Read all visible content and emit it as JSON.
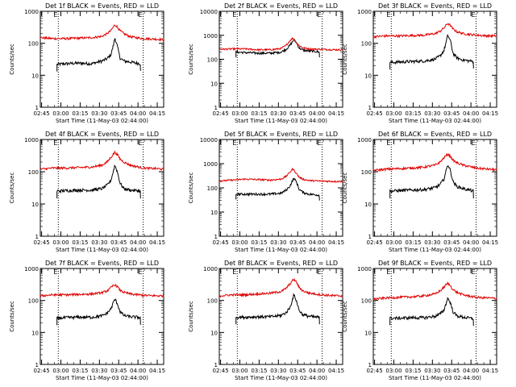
{
  "figure": {
    "panel_titles": [
      "Det 1f BLACK = Events, RED = LLD",
      "Det 2f BLACK = Events, RED = LLD",
      "Det 3f BLACK = Events, RED = LLD",
      "Det 4f BLACK = Events, RED = LLD",
      "Det 5f BLACK = Events, RED = LLD",
      "Det 6f BLACK = Events, RED = LLD",
      "Det 7f BLACK = Events, RED = LLD",
      "Det 8f BLACK = Events, RED = LLD",
      "Det 9f BLACK = Events, RED = LLD"
    ],
    "xlabel": "Start Time (11-May-03 02:44:00)",
    "ylabel": "Counts/sec",
    "x_tick_labels": [
      "02:45",
      "03:00",
      "03:15",
      "03:30",
      "03:45",
      "04:00",
      "04:15"
    ],
    "y_tick_labels": [
      "1",
      "10",
      "100",
      "1000"
    ],
    "marker_labels": [
      "E",
      "E"
    ],
    "colors": {
      "events": "#000000",
      "lld": "#e00000",
      "marker": "#000000"
    }
  },
  "chart_data": [
    {
      "type": "line",
      "title": "Det 1f BLACK = Events, RED = LLD",
      "xlabel": "Start Time (11-May-03 02:44:00)",
      "ylabel": "Counts/sec",
      "x_unit": "minutes after 02:44:00",
      "xlim": [
        0,
        96
      ],
      "ylim": [
        1,
        1000
      ],
      "y_scale": "log",
      "x_ticks": [
        "02:45",
        "03:00",
        "03:15",
        "03:30",
        "03:45",
        "04:00",
        "04:15"
      ],
      "vertical_markers_time": [
        "02:58",
        "04:04"
      ],
      "series": [
        {
          "name": "Events",
          "color": "#000000",
          "x": [
            13,
            20,
            30,
            40,
            48,
            52,
            55,
            57,
            58,
            60,
            62,
            65,
            70,
            75,
            78
          ],
          "y": [
            22,
            23,
            24,
            23,
            28,
            33,
            45,
            90,
            150,
            80,
            35,
            28,
            26,
            24,
            23
          ]
        },
        {
          "name": "LLD",
          "color": "#e00000",
          "x": [
            0,
            10,
            20,
            30,
            40,
            48,
            52,
            55,
            57,
            58,
            60,
            62,
            65,
            70,
            80,
            90,
            96
          ],
          "y": [
            150,
            140,
            140,
            145,
            150,
            165,
            200,
            250,
            330,
            380,
            320,
            250,
            200,
            160,
            140,
            135,
            130
          ]
        }
      ]
    },
    {
      "type": "line",
      "title": "Det 2f BLACK = Events, RED = LLD",
      "xlabel": "Start Time (11-May-03 02:44:00)",
      "ylabel": "Counts/sec",
      "x_unit": "minutes after 02:44:00",
      "xlim": [
        0,
        96
      ],
      "ylim": [
        1,
        10000
      ],
      "y_scale": "log",
      "x_ticks": [
        "02:45",
        "03:00",
        "03:15",
        "03:30",
        "03:45",
        "04:00",
        "04:15"
      ],
      "vertical_markers_time": [
        "02:58",
        "04:04"
      ],
      "series": [
        {
          "name": "Events",
          "color": "#000000",
          "x": [
            13,
            20,
            30,
            40,
            48,
            52,
            55,
            57,
            58,
            60,
            62,
            65,
            70,
            75,
            78
          ],
          "y": [
            200,
            190,
            180,
            180,
            200,
            260,
            380,
            550,
            650,
            500,
            300,
            240,
            220,
            210,
            200
          ]
        },
        {
          "name": "LLD",
          "color": "#e00000",
          "x": [
            0,
            10,
            20,
            30,
            40,
            48,
            52,
            55,
            57,
            58,
            60,
            62,
            65,
            70,
            80,
            90,
            96
          ],
          "y": [
            260,
            270,
            270,
            250,
            250,
            280,
            380,
            600,
            750,
            700,
            500,
            380,
            300,
            270,
            260,
            250,
            250
          ]
        }
      ]
    },
    {
      "type": "line",
      "title": "Det 3f BLACK = Events, RED = LLD",
      "xlabel": "Start Time (11-May-03 02:44:00)",
      "ylabel": "Counts/sec",
      "x_unit": "minutes after 02:44:00",
      "xlim": [
        0,
        96
      ],
      "ylim": [
        1,
        1000
      ],
      "y_scale": "log",
      "x_ticks": [
        "02:45",
        "03:00",
        "03:15",
        "03:30",
        "03:45",
        "04:00",
        "04:15"
      ],
      "vertical_markers_time": [
        "02:58",
        "04:04"
      ],
      "series": [
        {
          "name": "Events",
          "color": "#000000",
          "x": [
            13,
            20,
            30,
            40,
            48,
            52,
            55,
            57,
            58,
            60,
            62,
            65,
            70,
            75,
            78
          ],
          "y": [
            25,
            26,
            27,
            28,
            32,
            40,
            60,
            120,
            180,
            120,
            50,
            35,
            30,
            28,
            27
          ]
        },
        {
          "name": "LLD",
          "color": "#e00000",
          "x": [
            0,
            10,
            20,
            30,
            40,
            48,
            52,
            55,
            57,
            58,
            60,
            62,
            65,
            70,
            80,
            90,
            96
          ],
          "y": [
            160,
            170,
            170,
            175,
            180,
            200,
            240,
            300,
            380,
            420,
            360,
            280,
            230,
            200,
            180,
            170,
            170
          ]
        }
      ]
    },
    {
      "type": "line",
      "title": "Det 4f BLACK = Events, RED = LLD",
      "xlabel": "Start Time (11-May-03 02:44:00)",
      "ylabel": "Counts/sec",
      "x_unit": "minutes after 02:44:00",
      "xlim": [
        0,
        96
      ],
      "ylim": [
        1,
        1000
      ],
      "y_scale": "log",
      "x_ticks": [
        "02:45",
        "03:00",
        "03:15",
        "03:30",
        "03:45",
        "04:00",
        "04:15"
      ],
      "vertical_markers_time": [
        "02:58",
        "04:04"
      ],
      "series": [
        {
          "name": "Events",
          "color": "#000000",
          "x": [
            13,
            20,
            30,
            40,
            48,
            52,
            55,
            57,
            58,
            60,
            62,
            65,
            70,
            75,
            78
          ],
          "y": [
            25,
            26,
            27,
            27,
            30,
            38,
            55,
            110,
            160,
            100,
            45,
            30,
            27,
            26,
            25
          ]
        },
        {
          "name": "LLD",
          "color": "#e00000",
          "x": [
            0,
            10,
            20,
            30,
            40,
            48,
            52,
            55,
            57,
            58,
            60,
            62,
            65,
            70,
            80,
            90,
            96
          ],
          "y": [
            120,
            130,
            130,
            135,
            140,
            160,
            200,
            280,
            360,
            400,
            340,
            250,
            200,
            160,
            130,
            125,
            120
          ]
        }
      ]
    },
    {
      "type": "line",
      "title": "Det 5f BLACK = Events, RED = LLD",
      "xlabel": "Start Time (11-May-03 02:44:00)",
      "ylabel": "Counts/sec",
      "x_unit": "minutes after 02:44:00",
      "xlim": [
        0,
        96
      ],
      "ylim": [
        1,
        10000
      ],
      "y_scale": "log",
      "x_ticks": [
        "02:45",
        "03:00",
        "03:15",
        "03:30",
        "03:45",
        "04:00",
        "04:15"
      ],
      "vertical_markers_time": [
        "02:58",
        "04:04"
      ],
      "series": [
        {
          "name": "Events",
          "color": "#000000",
          "x": [
            13,
            20,
            30,
            40,
            48,
            52,
            55,
            57,
            58,
            60,
            62,
            65,
            70,
            75,
            78
          ],
          "y": [
            55,
            55,
            55,
            55,
            60,
            80,
            120,
            200,
            250,
            180,
            90,
            65,
            55,
            52,
            50
          ]
        },
        {
          "name": "LLD",
          "color": "#e00000",
          "x": [
            0,
            10,
            20,
            30,
            40,
            48,
            52,
            55,
            57,
            58,
            60,
            62,
            65,
            70,
            80,
            90,
            96
          ],
          "y": [
            190,
            210,
            230,
            220,
            210,
            230,
            300,
            450,
            600,
            550,
            400,
            280,
            230,
            200,
            190,
            185,
            185
          ]
        }
      ]
    },
    {
      "type": "line",
      "title": "Det 6f BLACK = Events, RED = LLD",
      "xlabel": "Start Time (11-May-03 02:44:00)",
      "ylabel": "Counts/sec",
      "x_unit": "minutes after 02:44:00",
      "xlim": [
        0,
        96
      ],
      "ylim": [
        1,
        1000
      ],
      "y_scale": "log",
      "x_ticks": [
        "02:45",
        "03:00",
        "03:15",
        "03:30",
        "03:45",
        "04:00",
        "04:15"
      ],
      "vertical_markers_time": [
        "02:58",
        "04:04"
      ],
      "series": [
        {
          "name": "Events",
          "color": "#000000",
          "x": [
            13,
            20,
            30,
            40,
            48,
            52,
            55,
            57,
            58,
            60,
            62,
            65,
            70,
            75,
            78
          ],
          "y": [
            25,
            26,
            27,
            28,
            32,
            40,
            60,
            120,
            170,
            110,
            50,
            35,
            30,
            27,
            25
          ]
        },
        {
          "name": "LLD",
          "color": "#e00000",
          "x": [
            0,
            10,
            20,
            30,
            40,
            48,
            52,
            55,
            57,
            58,
            60,
            62,
            65,
            70,
            80,
            90,
            96
          ],
          "y": [
            110,
            120,
            125,
            130,
            140,
            160,
            200,
            270,
            330,
            350,
            300,
            230,
            190,
            160,
            130,
            120,
            115
          ]
        }
      ]
    },
    {
      "type": "line",
      "title": "Det 7f BLACK = Events, RED = LLD",
      "xlabel": "Start Time (11-May-03 02:44:00)",
      "ylabel": "Counts/sec",
      "x_unit": "minutes after 02:44:00",
      "xlim": [
        0,
        96
      ],
      "ylim": [
        1,
        1000
      ],
      "y_scale": "log",
      "x_ticks": [
        "02:45",
        "03:00",
        "03:15",
        "03:30",
        "03:45",
        "04:00",
        "04:15"
      ],
      "vertical_markers_time": [
        "02:58",
        "04:04"
      ],
      "series": [
        {
          "name": "Events",
          "color": "#000000",
          "x": [
            13,
            20,
            30,
            40,
            48,
            52,
            55,
            57,
            58,
            60,
            62,
            65,
            70,
            75,
            78
          ],
          "y": [
            28,
            29,
            30,
            30,
            33,
            40,
            55,
            90,
            110,
            80,
            45,
            34,
            31,
            30,
            29
          ]
        },
        {
          "name": "LLD",
          "color": "#e00000",
          "x": [
            0,
            10,
            20,
            30,
            40,
            48,
            52,
            55,
            57,
            58,
            60,
            62,
            65,
            70,
            80,
            90,
            96
          ],
          "y": [
            140,
            150,
            150,
            155,
            160,
            175,
            200,
            250,
            300,
            310,
            270,
            210,
            180,
            160,
            145,
            140,
            140
          ]
        }
      ]
    },
    {
      "type": "line",
      "title": "Det 8f BLACK = Events, RED = LLD",
      "xlabel": "Start Time (11-May-03 02:44:00)",
      "ylabel": "Counts/sec",
      "x_unit": "minutes after 02:44:00",
      "xlim": [
        0,
        96
      ],
      "ylim": [
        1,
        1000
      ],
      "y_scale": "log",
      "x_ticks": [
        "02:45",
        "03:00",
        "03:15",
        "03:30",
        "03:45",
        "04:00",
        "04:15"
      ],
      "vertical_markers_time": [
        "02:58",
        "04:04"
      ],
      "series": [
        {
          "name": "Events",
          "color": "#000000",
          "x": [
            13,
            20,
            30,
            40,
            48,
            52,
            55,
            57,
            58,
            60,
            62,
            65,
            70,
            75,
            78
          ],
          "y": [
            30,
            30,
            31,
            31,
            34,
            42,
            60,
            110,
            150,
            100,
            50,
            36,
            32,
            30,
            30
          ]
        },
        {
          "name": "LLD",
          "color": "#e00000",
          "x": [
            0,
            10,
            20,
            30,
            40,
            48,
            52,
            55,
            57,
            58,
            60,
            62,
            65,
            70,
            80,
            90,
            96
          ],
          "y": [
            140,
            150,
            150,
            160,
            170,
            190,
            240,
            330,
            420,
            450,
            380,
            260,
            200,
            170,
            150,
            140,
            140
          ]
        }
      ]
    },
    {
      "type": "line",
      "title": "Det 9f BLACK = Events, RED = LLD",
      "xlabel": "Start Time (11-May-03 02:44:00)",
      "ylabel": "Counts/sec",
      "x_unit": "minutes after 02:44:00",
      "xlim": [
        0,
        96
      ],
      "ylim": [
        1,
        1000
      ],
      "y_scale": "log",
      "x_ticks": [
        "02:45",
        "03:00",
        "03:15",
        "03:30",
        "03:45",
        "04:00",
        "04:15"
      ],
      "vertical_markers_time": [
        "02:58",
        "04:04"
      ],
      "series": [
        {
          "name": "Events",
          "color": "#000000",
          "x": [
            13,
            20,
            30,
            40,
            48,
            52,
            55,
            57,
            58,
            60,
            62,
            65,
            70,
            75,
            78
          ],
          "y": [
            28,
            28,
            29,
            29,
            32,
            38,
            50,
            90,
            120,
            85,
            45,
            33,
            30,
            28,
            27
          ]
        },
        {
          "name": "LLD",
          "color": "#e00000",
          "x": [
            0,
            10,
            20,
            30,
            40,
            48,
            52,
            55,
            57,
            58,
            60,
            62,
            65,
            70,
            80,
            90,
            96
          ],
          "y": [
            110,
            120,
            125,
            130,
            140,
            160,
            200,
            260,
            320,
            340,
            290,
            220,
            180,
            150,
            125,
            120,
            115
          ]
        }
      ]
    }
  ]
}
